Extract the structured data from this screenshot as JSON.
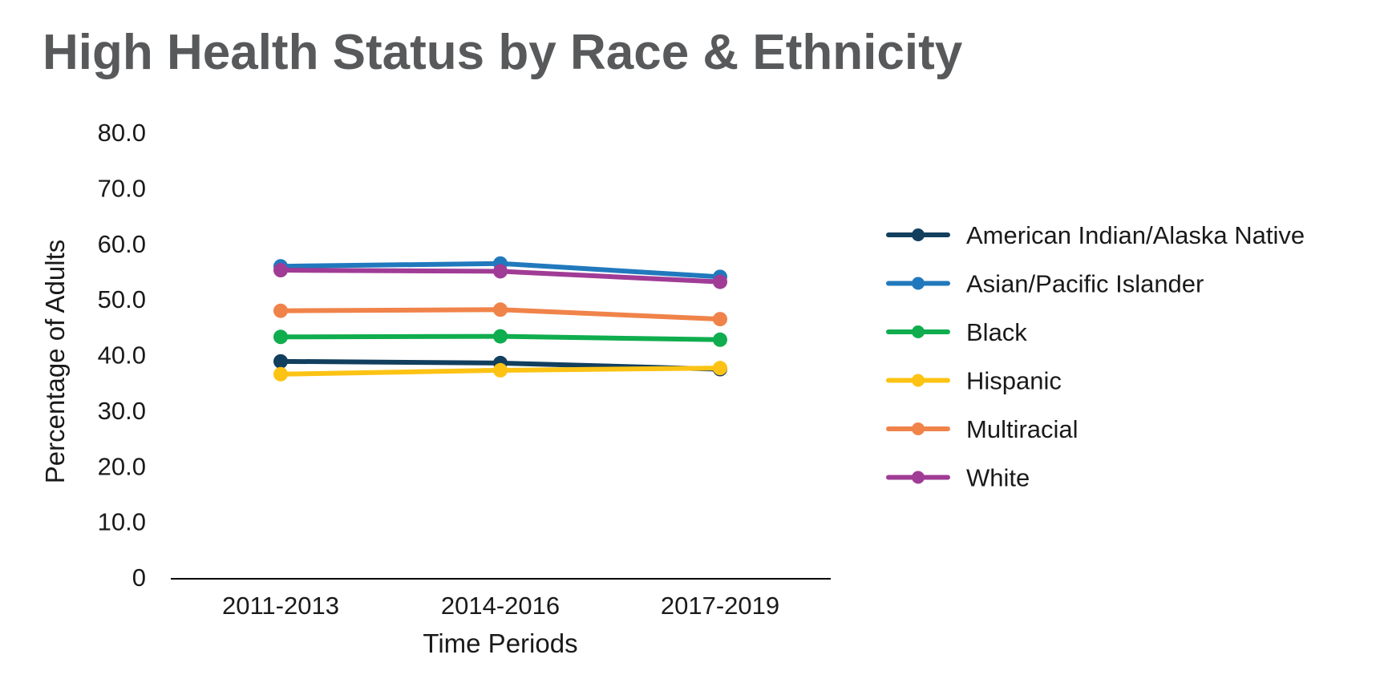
{
  "chart_data": {
    "type": "line",
    "title": "High Health Status by Race & Ethnicity",
    "xlabel": "Time Periods",
    "ylabel": "Percentage of Adults",
    "categories": [
      "2011-2013",
      "2014-2016",
      "2017-2019"
    ],
    "ylim": [
      0,
      80
    ],
    "yticks": [
      "0",
      "10.0",
      "20.0",
      "30.0",
      "40.0",
      "50.0",
      "60.0",
      "70.0",
      "80.0"
    ],
    "grid": false,
    "legend_position": "right",
    "series": [
      {
        "name": "American Indian/Alaska Native",
        "color": "#123f5e",
        "values": [
          38.8,
          38.5,
          37.4
        ]
      },
      {
        "name": "Asian/Pacific Islander",
        "color": "#2179bd",
        "values": [
          55.9,
          56.4,
          54.0
        ]
      },
      {
        "name": "Black",
        "color": "#0fad4e",
        "values": [
          43.2,
          43.3,
          42.7
        ]
      },
      {
        "name": "Hispanic",
        "color": "#fcc314",
        "values": [
          36.5,
          37.2,
          37.6
        ]
      },
      {
        "name": "Multiracial",
        "color": "#f0834a",
        "values": [
          47.9,
          48.1,
          46.4
        ]
      },
      {
        "name": "White",
        "color": "#a03c96",
        "values": [
          55.2,
          55.0,
          53.1
        ]
      }
    ]
  }
}
